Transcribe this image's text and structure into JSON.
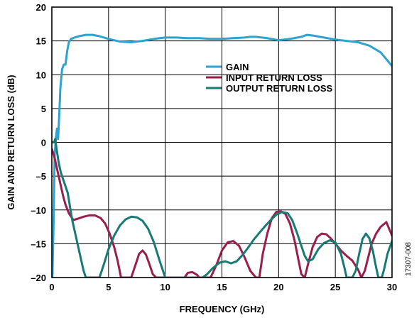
{
  "chart_data": {
    "type": "line",
    "xlabel": "FREQUENCY (GHz)",
    "ylabel": "GAIN AND RETURN LOSS (dB)",
    "xlim": [
      0,
      30
    ],
    "ylim": [
      -20,
      20
    ],
    "x_ticks": [
      0,
      5,
      10,
      15,
      20,
      25,
      30
    ],
    "y_ticks": [
      20,
      15,
      10,
      5,
      0,
      -5,
      -10,
      -15,
      -20
    ],
    "x_tick_labels": [
      "0",
      "5",
      "10",
      "15",
      "20",
      "25",
      "30"
    ],
    "y_tick_labels": [
      "20",
      "15",
      "10",
      "5",
      "0",
      "–5",
      "–10",
      "–15",
      "–20"
    ],
    "grid": true,
    "legend_position": "upper-right",
    "figure_id": "17307-008",
    "series": [
      {
        "name": "GAIN",
        "color": "#2fa3cf",
        "x": [
          0.05,
          0.15,
          0.25,
          0.35,
          0.45,
          0.55,
          0.65,
          0.75,
          0.9,
          1.05,
          1.2,
          1.35,
          1.5,
          1.7,
          2.0,
          2.4,
          3.0,
          3.6,
          4.2,
          5.0,
          6.0,
          7.0,
          8.0,
          9.0,
          10.0,
          11.0,
          12.0,
          13.0,
          14.0,
          15.0,
          16.0,
          17.0,
          17.5,
          18.0,
          19.0,
          20.0,
          21.0,
          22.0,
          22.5,
          23.0,
          24.0,
          25.0,
          26.0,
          27.0,
          28.0,
          29.0,
          30.0
        ],
        "y": [
          -20,
          -12,
          -2,
          0.5,
          2,
          0.5,
          4,
          8,
          10.8,
          11.5,
          11.5,
          13.5,
          14.8,
          15.3,
          15.5,
          15.7,
          15.9,
          15.9,
          15.7,
          15.3,
          14.9,
          14.8,
          15.0,
          15.3,
          15.5,
          15.5,
          15.4,
          15.4,
          15.3,
          15.3,
          15.4,
          15.5,
          15.6,
          15.6,
          15.4,
          15.1,
          15.3,
          15.6,
          15.9,
          15.8,
          15.5,
          15.2,
          15.0,
          14.8,
          14.3,
          13.3,
          11.3
        ]
      },
      {
        "name": "INPUT RETURN LOSS",
        "color": "#9b1f4d",
        "x": [
          0.0,
          0.2,
          0.4,
          0.6,
          0.8,
          1.0,
          1.2,
          1.5,
          1.9,
          2.3,
          2.8,
          3.3,
          3.8,
          4.3,
          4.7,
          5.1,
          5.5,
          5.8,
          6.1,
          6.5,
          7.0,
          7.4,
          7.7,
          8.0,
          8.3,
          8.6,
          8.9,
          9.2,
          11.7,
          12.0,
          12.4,
          12.8,
          13.0,
          13.3,
          14.0,
          14.5,
          15.0,
          15.5,
          16.0,
          16.5,
          17.0,
          17.5,
          18.0,
          18.3,
          18.6,
          19.0,
          19.4,
          19.8,
          20.2,
          20.6,
          21.0,
          21.4,
          21.7,
          22.0,
          22.3,
          22.6,
          23.0,
          23.4,
          23.8,
          24.2,
          24.6,
          25.0,
          25.5,
          26.0,
          26.5,
          27.0,
          27.3,
          27.6,
          27.9,
          28.2,
          28.6,
          29.0,
          29.5,
          30.0
        ],
        "y": [
          -1.0,
          -2.0,
          -3.5,
          -5.0,
          -6.5,
          -8.0,
          -9.2,
          -10.5,
          -11.5,
          -11.3,
          -11.0,
          -10.8,
          -10.8,
          -11.2,
          -12.0,
          -13.5,
          -15.5,
          -17.5,
          -20,
          -20,
          -20,
          -18.0,
          -16.5,
          -16.0,
          -16.6,
          -18.0,
          -19.5,
          -20,
          -20,
          -19.3,
          -19.2,
          -19.6,
          -20,
          -20,
          -20,
          -18.2,
          -16.0,
          -14.8,
          -14.6,
          -15.3,
          -17.0,
          -19.0,
          -20,
          -20,
          -16.5,
          -13.5,
          -11.2,
          -10.3,
          -10.2,
          -10.6,
          -12.0,
          -14.5,
          -17.0,
          -19.5,
          -20,
          -18.0,
          -15.5,
          -14.0,
          -13.5,
          -13.6,
          -14.2,
          -15.0,
          -16.0,
          -16.8,
          -17.5,
          -18.8,
          -20,
          -19.0,
          -17.0,
          -15.0,
          -13.5,
          -12.5,
          -11.8,
          -13.8
        ]
      },
      {
        "name": "OUTPUT RETURN LOSS",
        "color": "#177a74",
        "x": [
          0.0,
          0.2,
          0.3,
          0.4,
          0.6,
          0.8,
          1.0,
          1.2,
          1.4,
          1.6,
          1.8,
          2.0,
          2.2,
          2.4,
          2.6,
          2.8,
          3.0,
          3.2,
          4.2,
          4.6,
          5.0,
          5.5,
          6.0,
          6.5,
          7.0,
          7.5,
          8.0,
          8.5,
          9.0,
          9.5,
          9.8,
          10.0,
          13.3,
          13.7,
          14.2,
          14.8,
          15.3,
          15.8,
          16.3,
          16.8,
          17.3,
          17.8,
          18.3,
          18.8,
          19.3,
          19.8,
          20.3,
          20.8,
          21.2,
          21.6,
          22.0,
          22.3,
          22.6,
          23.0,
          23.5,
          24.0,
          24.5,
          25.0,
          25.5,
          25.8,
          26.0,
          26.5,
          26.8,
          27.1,
          27.4,
          27.7,
          28.0,
          28.3,
          28.6,
          28.8,
          29.1,
          29.3,
          29.6,
          30.0
        ],
        "y": [
          0.0,
          0.0,
          0.5,
          -0.8,
          -3.0,
          -4.5,
          -5.5,
          -6.5,
          -7.5,
          -9.5,
          -11.5,
          -13.0,
          -14.5,
          -16.0,
          -17.5,
          -19.0,
          -20,
          -20,
          -20,
          -18.0,
          -15.8,
          -13.8,
          -12.3,
          -11.4,
          -11.0,
          -11.1,
          -11.6,
          -12.8,
          -14.8,
          -17.5,
          -19.0,
          -20,
          -20,
          -19.5,
          -18.6,
          -17.8,
          -17.6,
          -17.9,
          -17.6,
          -16.7,
          -15.6,
          -14.4,
          -13.4,
          -12.4,
          -11.5,
          -10.7,
          -10.3,
          -10.5,
          -11.5,
          -13.3,
          -15.3,
          -16.8,
          -17.6,
          -17.3,
          -15.8,
          -14.9,
          -14.5,
          -14.8,
          -16.5,
          -18.5,
          -20,
          -20,
          -19.0,
          -16.5,
          -14.3,
          -13.5,
          -14.2,
          -16.0,
          -18.5,
          -20,
          -20,
          -18.8,
          -16.5,
          -14.6
        ]
      }
    ]
  }
}
